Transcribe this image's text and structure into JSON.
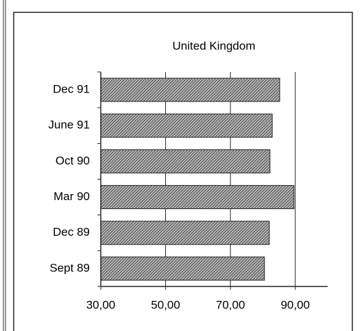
{
  "chart_data": {
    "type": "bar",
    "orientation": "horizontal",
    "title": "United Kingdom",
    "categories": [
      "Dec 91",
      "June 91",
      "Oct 90",
      "Mar 90",
      "Dec 89",
      "Sept 89"
    ],
    "values": [
      85.2,
      82.9,
      82.2,
      89.6,
      82.0,
      80.5
    ],
    "color": "#555555",
    "xlim": [
      30,
      100
    ],
    "xticks": [
      {
        "value": 30,
        "label": "30,00"
      },
      {
        "value": 50,
        "label": "50,00"
      },
      {
        "value": 70,
        "label": "70,00"
      },
      {
        "value": 90,
        "label": "90,00"
      }
    ],
    "grid": true
  }
}
